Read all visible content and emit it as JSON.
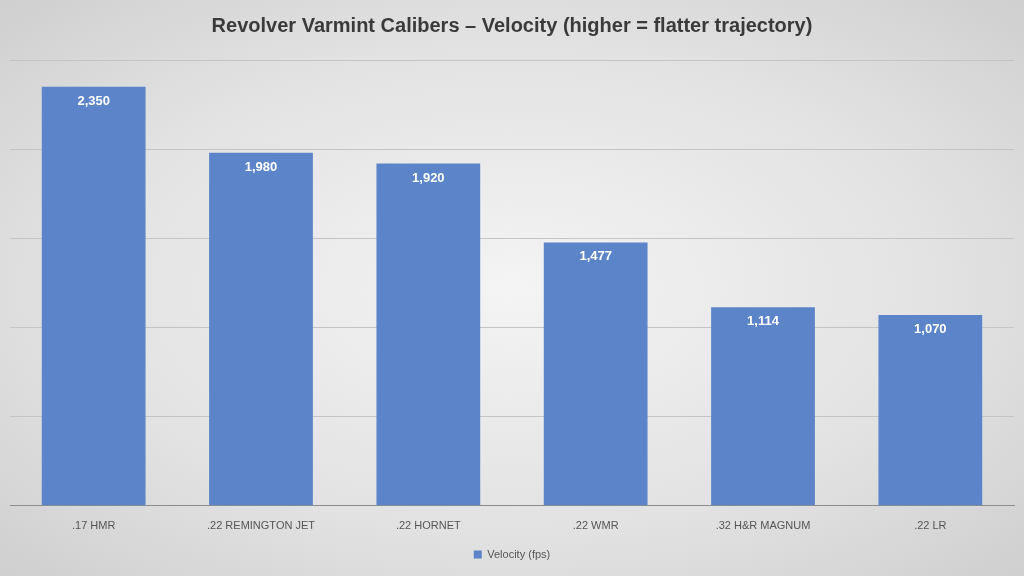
{
  "chart_data": {
    "type": "bar",
    "title": "Revolver Varmint Calibers – Velocity (higher = flatter trajectory)",
    "categories": [
      ".17 HMR",
      ".22 REMINGTON JET",
      ".22 HORNET",
      ".22 WMR",
      ".32 H&R MAGNUM",
      ".22 LR"
    ],
    "series": [
      {
        "name": "Velocity (fps)",
        "color": "#5b84c9",
        "values": [
          2350,
          1980,
          1920,
          1477,
          1114,
          1070
        ],
        "value_labels": [
          "2,350",
          "1,980",
          "1,920",
          "1,477",
          "1,114",
          "1,070"
        ]
      }
    ],
    "ylim": [
      0,
      2500
    ],
    "yticks": [
      0,
      500,
      1000,
      1500,
      2000,
      2500
    ],
    "grid": true,
    "legend": "bottom",
    "data_labels": true,
    "tick_labels": "x"
  }
}
